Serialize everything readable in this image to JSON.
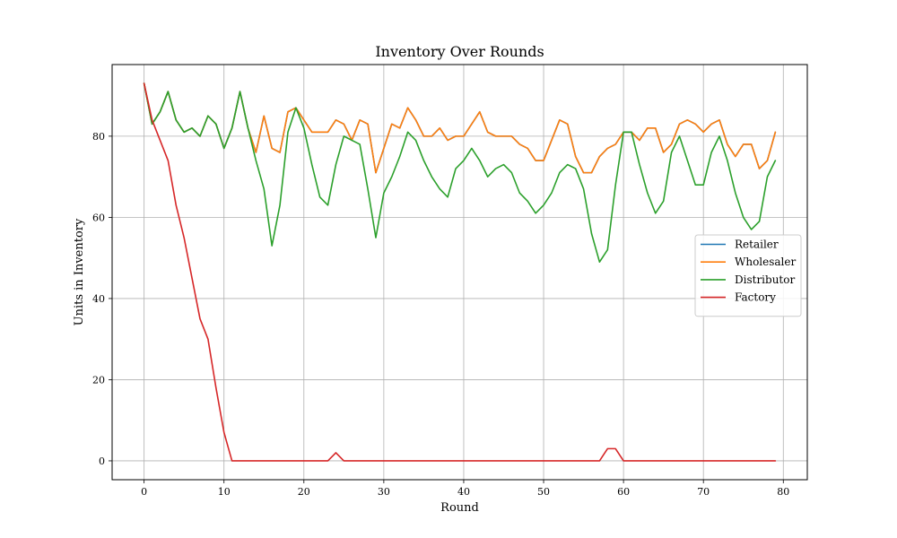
{
  "chart_data": {
    "type": "line",
    "title": "Inventory Over Rounds",
    "xlabel": "Round",
    "ylabel": "Units in Inventory",
    "xlim": [
      -4,
      83
    ],
    "ylim": [
      -4.65,
      97.65
    ],
    "xticks": [
      0,
      10,
      20,
      30,
      40,
      50,
      60,
      70,
      80
    ],
    "yticks": [
      0,
      20,
      40,
      60,
      80
    ],
    "grid": true,
    "legend_position": "center-right",
    "x": [
      0,
      1,
      2,
      3,
      4,
      5,
      6,
      7,
      8,
      9,
      10,
      11,
      12,
      13,
      14,
      15,
      16,
      17,
      18,
      19,
      20,
      21,
      22,
      23,
      24,
      25,
      26,
      27,
      28,
      29,
      30,
      31,
      32,
      33,
      34,
      35,
      36,
      37,
      38,
      39,
      40,
      41,
      42,
      43,
      44,
      45,
      46,
      47,
      48,
      49,
      50,
      51,
      52,
      53,
      54,
      55,
      56,
      57,
      58,
      59,
      60,
      61,
      62,
      63,
      64,
      65,
      66,
      67,
      68,
      69,
      70,
      71,
      72,
      73,
      74,
      75,
      76,
      77,
      78,
      79
    ],
    "series": [
      {
        "name": "Retailer",
        "color": "#1f77b4",
        "values": [
          93,
          83,
          86,
          91,
          84,
          81,
          82,
          80,
          85,
          83,
          77,
          82,
          91,
          82,
          76,
          85,
          77,
          76,
          86,
          87,
          84,
          81,
          81,
          81,
          84,
          83,
          79,
          84,
          83,
          71,
          77,
          83,
          82,
          87,
          84,
          80,
          80,
          82,
          79,
          80,
          80,
          83,
          86,
          81,
          80,
          80,
          80,
          78,
          77,
          74,
          74,
          79,
          84,
          83,
          75,
          71,
          71,
          75,
          77,
          78,
          81,
          81,
          79,
          82,
          82,
          76,
          78,
          83,
          84,
          83,
          81,
          83,
          84,
          78,
          75,
          78,
          78,
          72,
          74,
          81
        ]
      },
      {
        "name": "Wholesaler",
        "color": "#ff7f0e",
        "values": [
          93,
          83,
          86,
          91,
          84,
          81,
          82,
          80,
          85,
          83,
          77,
          82,
          91,
          82,
          76,
          85,
          77,
          76,
          86,
          87,
          84,
          81,
          81,
          81,
          84,
          83,
          79,
          84,
          83,
          71,
          77,
          83,
          82,
          87,
          84,
          80,
          80,
          82,
          79,
          80,
          80,
          83,
          86,
          81,
          80,
          80,
          80,
          78,
          77,
          74,
          74,
          79,
          84,
          83,
          75,
          71,
          71,
          75,
          77,
          78,
          81,
          81,
          79,
          82,
          82,
          76,
          78,
          83,
          84,
          83,
          81,
          83,
          84,
          78,
          75,
          78,
          78,
          72,
          74,
          81
        ]
      },
      {
        "name": "Distributor",
        "color": "#2ca02c",
        "values": [
          93,
          83,
          86,
          91,
          84,
          81,
          82,
          80,
          85,
          83,
          77,
          82,
          91,
          82,
          74,
          67,
          53,
          63,
          81,
          87,
          82,
          73,
          65,
          63,
          73,
          80,
          79,
          78,
          67,
          55,
          66,
          70,
          75,
          81,
          79,
          74,
          70,
          67,
          65,
          72,
          74,
          77,
          74,
          70,
          72,
          73,
          71,
          66,
          64,
          61,
          63,
          66,
          71,
          73,
          72,
          67,
          56,
          49,
          52,
          68,
          81,
          81,
          73,
          66,
          61,
          64,
          76,
          80,
          74,
          68,
          68,
          76,
          80,
          74,
          66,
          60,
          57,
          59,
          70,
          74
        ]
      },
      {
        "name": "Factory",
        "color": "#d62728",
        "values": [
          93,
          84,
          79,
          74,
          63,
          55,
          45,
          35,
          30,
          18,
          7,
          0,
          0,
          0,
          0,
          0,
          0,
          0,
          0,
          0,
          0,
          0,
          0,
          0,
          2,
          0,
          0,
          0,
          0,
          0,
          0,
          0,
          0,
          0,
          0,
          0,
          0,
          0,
          0,
          0,
          0,
          0,
          0,
          0,
          0,
          0,
          0,
          0,
          0,
          0,
          0,
          0,
          0,
          0,
          0,
          0,
          0,
          0,
          3,
          3,
          0,
          0,
          0,
          0,
          0,
          0,
          0,
          0,
          0,
          0,
          0,
          0,
          0,
          0,
          0,
          0,
          0,
          0,
          0,
          0
        ]
      }
    ]
  }
}
